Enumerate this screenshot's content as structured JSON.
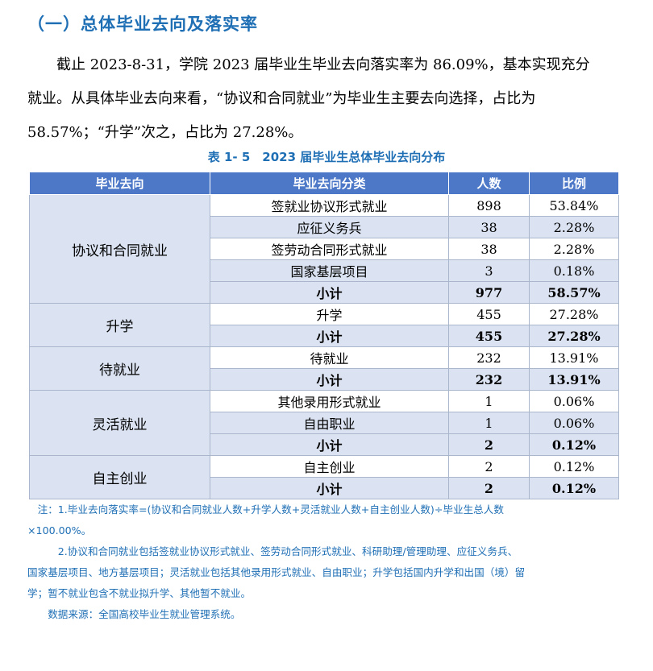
{
  "section_title": "（一）总体毕业去向及落实率",
  "paragraph_lines": [
    "截止 2023-8-31，学院 2023 届毕业生毕业去向落实率为 86.09%，基本实现充分",
    "就业。从具体毕业去向来看，“协议和合同就业”为毕业生主要去向选择，占比为",
    "58.57%；“升学”次之，占比为 27.28%。"
  ],
  "table_caption": "表 1- 5　2023 届毕业生总体毕业去向分布",
  "table": {
    "headers": [
      "毕业去向",
      "毕业去向分类",
      "人数",
      "比例"
    ],
    "groups": [
      {
        "name": "协议和合同就业",
        "rows": [
          {
            "category": "签就业协议形式就业",
            "count": "898",
            "ratio": "53.84%"
          },
          {
            "category": "应征义务兵",
            "count": "38",
            "ratio": "2.28%"
          },
          {
            "category": "签劳动合同形式就业",
            "count": "38",
            "ratio": "2.28%"
          },
          {
            "category": "国家基层项目",
            "count": "3",
            "ratio": "0.18%"
          },
          {
            "category": "小计",
            "count": "977",
            "ratio": "58.57%",
            "subtotal": true
          }
        ]
      },
      {
        "name": "升学",
        "rows": [
          {
            "category": "升学",
            "count": "455",
            "ratio": "27.28%"
          },
          {
            "category": "小计",
            "count": "455",
            "ratio": "27.28%",
            "subtotal": true
          }
        ]
      },
      {
        "name": "待就业",
        "rows": [
          {
            "category": "待就业",
            "count": "232",
            "ratio": "13.91%"
          },
          {
            "category": "小计",
            "count": "232",
            "ratio": "13.91%",
            "subtotal": true
          }
        ]
      },
      {
        "name": "灵活就业",
        "rows": [
          {
            "category": "其他录用形式就业",
            "count": "1",
            "ratio": "0.06%"
          },
          {
            "category": "自由职业",
            "count": "1",
            "ratio": "0.06%"
          },
          {
            "category": "小计",
            "count": "2",
            "ratio": "0.12%",
            "subtotal": true
          }
        ]
      },
      {
        "name": "自主创业",
        "rows": [
          {
            "category": "自主创业",
            "count": "2",
            "ratio": "0.12%"
          },
          {
            "category": "小计",
            "count": "2",
            "ratio": "0.12%",
            "subtotal": true
          }
        ]
      }
    ]
  },
  "notes": [
    "　注：1.毕业去向落实率=(协议和合同就业人数+升学人数+灵活就业人数+自主创业人数)÷毕业生总人数",
    "×100.00%。",
    "　　　2.协议和合同就业包括签就业协议形式就业、签劳动合同形式就业、科研助理/管理助理、应征义务兵、",
    "国家基层项目、地方基层项目；灵活就业包括其他录用形式就业、自由职业；升学包括国内升学和出国（境）留",
    "学；暂不就业包含不就业拟升学、其他暂不就业。",
    "　　数据来源：全国高校毕业生就业管理系统。"
  ]
}
